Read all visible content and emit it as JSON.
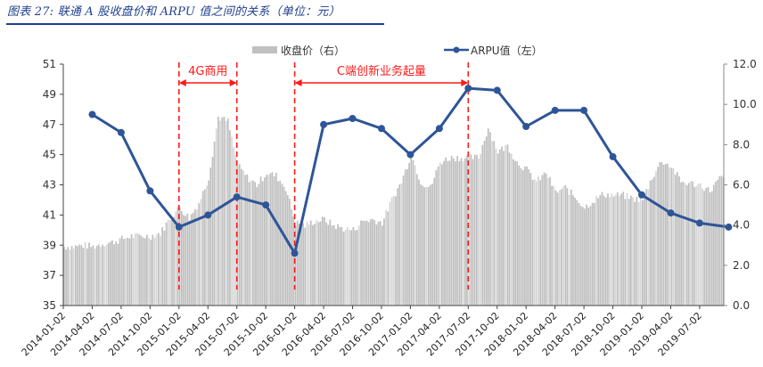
{
  "title": "图表 27: 联通 A 股收盘价和 ARPU 值之间的关系（单位：元）",
  "legend": {
    "price_label": "收盘价（右）",
    "arpu_label": "ARPU值（左）"
  },
  "annotations": [
    {
      "label": "4G商用",
      "from": "2015-01-02",
      "to": "2015-07-02"
    },
    {
      "label": "C端创新业务起量",
      "from": "2016-01-02",
      "to": "2017-07-02"
    }
  ],
  "colors": {
    "price_bars": "#c0c0c0",
    "arpu_line": "#2e5597",
    "annotation": "#ff1a1a",
    "title": "#1f3f8f"
  },
  "chart_data": {
    "type": "bar+line",
    "title": "联通 A 股收盘价和 ARPU 值之间的关系（单位：元）",
    "xlabel": "",
    "x_tick_labels": [
      "2014-01-02",
      "2014-04-02",
      "2014-07-02",
      "2014-10-02",
      "2015-01-02",
      "2015-04-02",
      "2015-07-02",
      "2015-10-02",
      "2016-01-02",
      "2016-04-02",
      "2016-07-02",
      "2016-10-02",
      "2017-01-02",
      "2017-04-02",
      "2017-07-02",
      "2017-10-02",
      "2018-01-02",
      "2018-04-02",
      "2018-07-02",
      "2018-10-02",
      "2019-01-02",
      "2019-04-02",
      "2019-07-02"
    ],
    "left_axis": {
      "ticks": [
        "35",
        "37",
        "39",
        "41",
        "43",
        "45",
        "47",
        "49",
        "51"
      ],
      "range": [
        35,
        51
      ]
    },
    "right_axis": {
      "ticks": [
        "0.0",
        "2.0",
        "4.0",
        "6.0",
        "8.0",
        "10.0",
        "12.0"
      ],
      "range": [
        0,
        12
      ]
    },
    "grid": false,
    "legend_position": "top",
    "series": [
      {
        "name": "收盘价（右）",
        "type": "bar",
        "axis": "left",
        "monthly_approx": [
          [
            "2014-01",
            38.9
          ],
          [
            "2014-02",
            38.9
          ],
          [
            "2014-03",
            39.0
          ],
          [
            "2014-04",
            38.9
          ],
          [
            "2014-05",
            39.1
          ],
          [
            "2014-06",
            39.2
          ],
          [
            "2014-07",
            39.4
          ],
          [
            "2014-08",
            39.6
          ],
          [
            "2014-09",
            39.6
          ],
          [
            "2014-10",
            39.6
          ],
          [
            "2014-11",
            39.8
          ],
          [
            "2014-12",
            40.8
          ],
          [
            "2015-01",
            41.5
          ],
          [
            "2015-02",
            40.8
          ],
          [
            "2015-03",
            41.8
          ],
          [
            "2015-04",
            43.5
          ],
          [
            "2015-05",
            47.5
          ],
          [
            "2015-06",
            47.2
          ],
          [
            "2015-07",
            44.3
          ],
          [
            "2015-08",
            43.5
          ],
          [
            "2015-09",
            43.0
          ],
          [
            "2015-10",
            43.8
          ],
          [
            "2015-11",
            43.6
          ],
          [
            "2015-12",
            42.8
          ],
          [
            "2016-01",
            40.5
          ],
          [
            "2016-02",
            40.3
          ],
          [
            "2016-03",
            40.6
          ],
          [
            "2016-04",
            40.7
          ],
          [
            "2016-05",
            40.3
          ],
          [
            "2016-06",
            40.1
          ],
          [
            "2016-07",
            40.0
          ],
          [
            "2016-08",
            40.6
          ],
          [
            "2016-09",
            40.7
          ],
          [
            "2016-10",
            40.5
          ],
          [
            "2016-11",
            42.0
          ],
          [
            "2016-12",
            43.2
          ],
          [
            "2017-01",
            45.0
          ],
          [
            "2017-02",
            43.2
          ],
          [
            "2017-03",
            42.8
          ],
          [
            "2017-04",
            44.5
          ],
          [
            "2017-05",
            44.8
          ],
          [
            "2017-06",
            44.8
          ],
          [
            "2017-07",
            44.8
          ],
          [
            "2017-08",
            44.8
          ],
          [
            "2017-09",
            46.8
          ],
          [
            "2017-10",
            45.2
          ],
          [
            "2017-11",
            45.6
          ],
          [
            "2017-12",
            44.5
          ],
          [
            "2018-01",
            44.0
          ],
          [
            "2018-02",
            43.2
          ],
          [
            "2018-03",
            43.8
          ],
          [
            "2018-04",
            42.5
          ],
          [
            "2018-05",
            42.8
          ],
          [
            "2018-06",
            42.2
          ],
          [
            "2018-07",
            41.5
          ],
          [
            "2018-08",
            42.0
          ],
          [
            "2018-09",
            42.4
          ],
          [
            "2018-10",
            42.3
          ],
          [
            "2018-11",
            42.3
          ],
          [
            "2018-12",
            42.1
          ],
          [
            "2019-01",
            42.0
          ],
          [
            "2019-02",
            43.5
          ],
          [
            "2019-03",
            44.6
          ],
          [
            "2019-04",
            44.2
          ],
          [
            "2019-05",
            43.2
          ],
          [
            "2019-06",
            43.1
          ],
          [
            "2019-07",
            43.0
          ],
          [
            "2019-08",
            42.6
          ],
          [
            "2019-09",
            43.4
          ],
          [
            "2019-10",
            43.6
          ]
        ]
      },
      {
        "name": "ARPU值（左）",
        "type": "line",
        "axis": "right",
        "x": [
          "2014-04-02",
          "2014-07-02",
          "2014-10-02",
          "2015-01-02",
          "2015-04-02",
          "2015-07-02",
          "2015-10-02",
          "2016-01-02",
          "2016-04-02",
          "2016-07-02",
          "2016-10-02",
          "2017-01-02",
          "2017-04-02",
          "2017-07-02",
          "2017-10-02",
          "2018-01-02",
          "2018-04-02",
          "2018-07-02",
          "2018-10-02",
          "2019-01-02",
          "2019-04-02",
          "2019-07-02",
          "2019-10-02"
        ],
        "values": [
          9.5,
          8.6,
          5.7,
          3.9,
          4.5,
          5.4,
          5.0,
          2.6,
          9.0,
          9.3,
          8.8,
          7.5,
          8.8,
          10.8,
          10.7,
          8.9,
          9.7,
          9.7,
          7.4,
          5.5,
          4.6,
          4.1,
          3.9
        ]
      }
    ]
  }
}
